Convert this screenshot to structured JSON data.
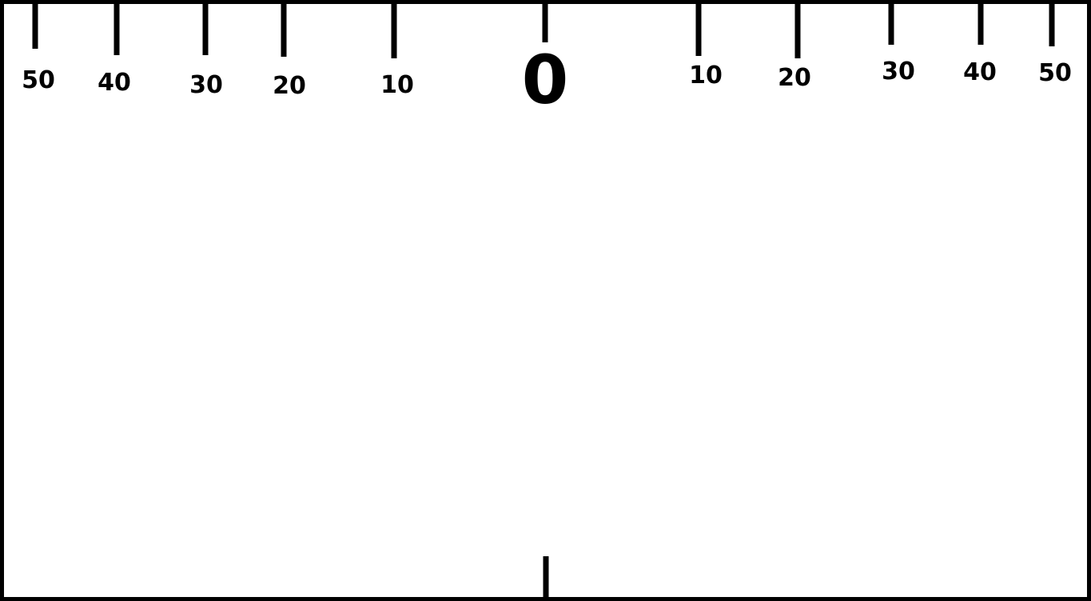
{
  "scale": {
    "left_labels": [
      "50",
      "40",
      "30",
      "20",
      "10"
    ],
    "zero_label": "0",
    "right_labels": [
      "10",
      "20",
      "30",
      "40",
      "50"
    ]
  }
}
